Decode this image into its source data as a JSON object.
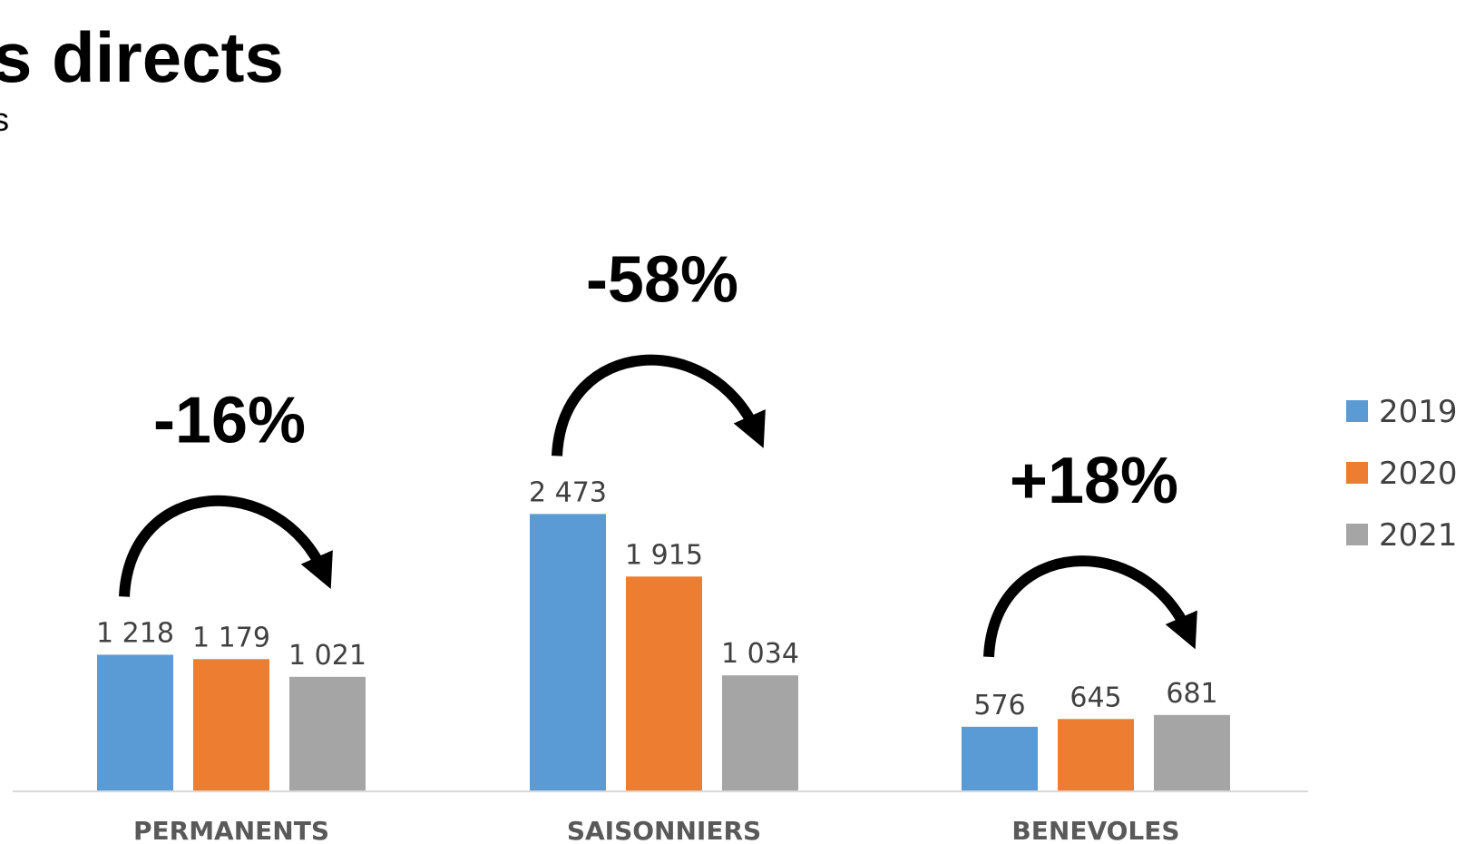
{
  "title_fragment": "s directs",
  "subtitle_fragment": "s",
  "chart_data": {
    "type": "bar",
    "categories": [
      "PERMANENTS",
      "SAISONNIERS",
      "BENEVOLES"
    ],
    "series": [
      {
        "name": "2019",
        "color": "#5B9BD5",
        "values": [
          1218,
          2473,
          576
        ],
        "labels": [
          "1 218",
          "2 473",
          "576"
        ]
      },
      {
        "name": "2020",
        "color": "#ED7D31",
        "values": [
          1179,
          1915,
          645
        ],
        "labels": [
          "1 179",
          "1 915",
          "645"
        ]
      },
      {
        "name": "2021",
        "color": "#A5A5A5",
        "values": [
          1021,
          1034,
          681
        ],
        "labels": [
          "1 021",
          "1 034",
          "681"
        ]
      }
    ],
    "ylim": [
      0,
      2500
    ],
    "grid": false,
    "legend_position": "right",
    "annotations": [
      {
        "category": "PERMANENTS",
        "text": "-16%"
      },
      {
        "category": "SAISONNIERS",
        "text": "-58%"
      },
      {
        "category": "BENEVOLES",
        "text": "+18%"
      }
    ]
  }
}
